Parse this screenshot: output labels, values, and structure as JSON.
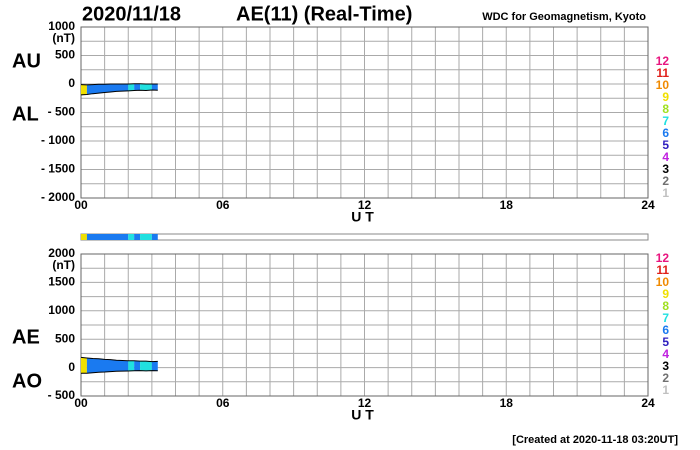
{
  "header": {
    "date": "2020/11/18",
    "title": "AE(11) (Real-Time)",
    "source": "WDC for Geomagnetism, Kyoto",
    "created": "[Created at 2020-11-18 03:20UT]"
  },
  "levels": [
    {
      "label": "12",
      "color": "#e8157f"
    },
    {
      "label": "11",
      "color": "#e0201a"
    },
    {
      "label": "10",
      "color": "#f08a00"
    },
    {
      "label": "9",
      "color": "#f0e000"
    },
    {
      "label": "8",
      "color": "#a0e020"
    },
    {
      "label": "7",
      "color": "#20e0e0"
    },
    {
      "label": "6",
      "color": "#1a7af0"
    },
    {
      "label": "5",
      "color": "#3020c0"
    },
    {
      "label": "4",
      "color": "#c020e0"
    },
    {
      "label": "3",
      "color": "#000000"
    },
    {
      "label": "2",
      "color": "#707070"
    },
    {
      "label": "1",
      "color": "#c0c0c0"
    }
  ],
  "station_segments": [
    {
      "start": 0,
      "end": 0.25,
      "stations": 9
    },
    {
      "start": 0.25,
      "end": 2.0,
      "stations": 6
    },
    {
      "start": 2.0,
      "end": 2.25,
      "stations": 7
    },
    {
      "start": 2.25,
      "end": 2.5,
      "stations": 6
    },
    {
      "start": 2.5,
      "end": 3.0,
      "stations": 7
    },
    {
      "start": 3.0,
      "end": 3.25,
      "stations": 6
    }
  ],
  "chart_data": [
    {
      "type": "area",
      "unit": "(nT)",
      "xlabel": "U T",
      "x": [
        0,
        0.25,
        0.5,
        0.75,
        1,
        1.25,
        1.5,
        1.75,
        2,
        2.25,
        2.5,
        2.75,
        3,
        3.25
      ],
      "series": [
        {
          "name": "AU",
          "color": "#000000",
          "values": [
            -10,
            -15,
            -10,
            -5,
            -5,
            0,
            0,
            0,
            0,
            5,
            5,
            0,
            0,
            0
          ]
        },
        {
          "name": "AL",
          "color": "#000000",
          "values": [
            -190,
            -185,
            -170,
            -160,
            -150,
            -140,
            -130,
            -125,
            -120,
            -115,
            -110,
            -115,
            -105,
            -110
          ]
        }
      ],
      "xlim": [
        0,
        24
      ],
      "xticks": [
        {
          "value": 0,
          "label": "00"
        },
        {
          "value": 6,
          "label": "06"
        },
        12,
        18,
        24
      ],
      "xgrid": [
        0,
        1,
        2,
        3,
        4,
        5,
        6,
        7,
        8,
        9,
        10,
        11,
        12,
        13,
        14,
        15,
        16,
        17,
        18,
        19,
        20,
        21,
        22,
        23,
        24
      ],
      "ylim": [
        -2000,
        1000
      ],
      "yticks": [
        1000,
        500,
        0,
        {
          "value": -500,
          "label": "- 500"
        },
        {
          "value": -1000,
          "label": "- 1000"
        },
        {
          "value": -1500,
          "label": "- 1500"
        },
        {
          "value": -2000,
          "label": "- 2000"
        }
      ],
      "ygrid": [
        1000,
        750,
        500,
        250,
        0,
        -250,
        -500,
        -750,
        -1000,
        -1250,
        -1500,
        -1750,
        -2000
      ]
    },
    {
      "type": "area",
      "unit": "(nT)",
      "xlabel": "U T",
      "x": [
        0,
        0.25,
        0.5,
        0.75,
        1,
        1.25,
        1.5,
        1.75,
        2,
        2.25,
        2.5,
        2.75,
        3,
        3.25
      ],
      "series": [
        {
          "name": "AE",
          "color": "#000000",
          "values": [
            180,
            170,
            160,
            155,
            145,
            140,
            130,
            125,
            120,
            120,
            115,
            115,
            105,
            110
          ]
        },
        {
          "name": "AO",
          "color": "#000000",
          "values": [
            -100,
            -100,
            -90,
            -82.5,
            -77.5,
            -70,
            -65,
            -62.5,
            -60,
            -55,
            -52.5,
            -57.5,
            -52.5,
            -55
          ]
        }
      ],
      "xlim": [
        0,
        24
      ],
      "xticks": [
        {
          "value": 0,
          "label": "00"
        },
        {
          "value": 6,
          "label": "06"
        },
        12,
        18,
        24
      ],
      "xgrid": [
        0,
        1,
        2,
        3,
        4,
        5,
        6,
        7,
        8,
        9,
        10,
        11,
        12,
        13,
        14,
        15,
        16,
        17,
        18,
        19,
        20,
        21,
        22,
        23,
        24
      ],
      "ylim": [
        -500,
        2000
      ],
      "yticks": [
        2000,
        1500,
        1000,
        500,
        0,
        {
          "value": -500,
          "label": "- 500"
        }
      ],
      "ygrid": [
        2000,
        1750,
        1500,
        1250,
        1000,
        750,
        500,
        250,
        0,
        -250,
        -500
      ]
    }
  ]
}
